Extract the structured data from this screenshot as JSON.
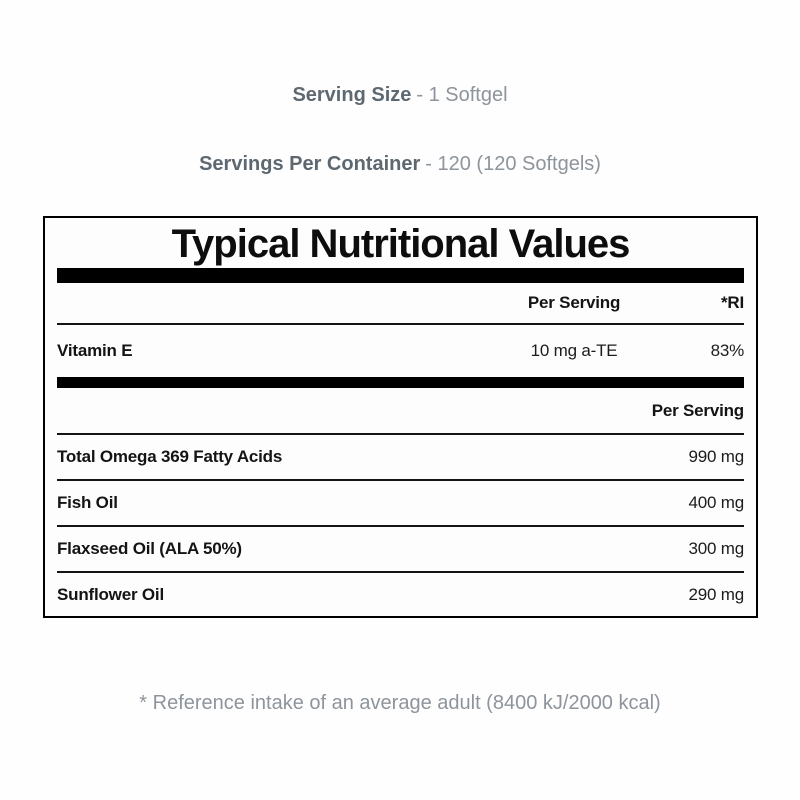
{
  "header": {
    "serving_size_label": "Serving Size",
    "serving_size_value": "- 1 Softgel",
    "servings_per_container_label": "Servings Per Container",
    "servings_per_container_value": "- 120 (120 Softgels)"
  },
  "table": {
    "title": "Typical Nutritional Values",
    "section1": {
      "per_serving_header": "Per Serving",
      "ri_header": "*RI",
      "rows": [
        {
          "name": "Vitamin E",
          "per_serving": "10 mg a-TE",
          "ri": "83%"
        }
      ]
    },
    "section2": {
      "per_serving_header": "Per Serving",
      "rows": [
        {
          "name": "Total Omega 369 Fatty Acids",
          "value": "990 mg"
        },
        {
          "name": "Fish Oil",
          "value": "400 mg"
        },
        {
          "name": "Flaxseed Oil (ALA 50%)",
          "value": "300 mg"
        },
        {
          "name": "Sunflower Oil",
          "value": "290 mg"
        }
      ]
    }
  },
  "footnote": "* Reference intake of an average adult (8400 kJ/2000 kcal)",
  "colors": {
    "label_gray_bold": "#5e6870",
    "label_gray": "#8d949b",
    "table_black": "#141414",
    "background": "#fefefe"
  }
}
